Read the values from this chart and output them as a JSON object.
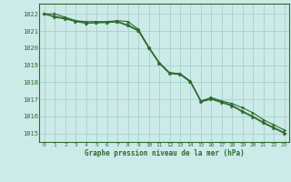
{
  "title": "Graphe pression niveau de la mer (hPa)",
  "bg_color": "#cceae8",
  "grid_color": "#aad4d0",
  "line_color": "#2d6b2d",
  "marker_color": "#2d6b2d",
  "xlim": [
    -0.5,
    23.5
  ],
  "ylim": [
    1014.5,
    1022.6
  ],
  "yticks": [
    1015,
    1016,
    1017,
    1018,
    1019,
    1020,
    1021,
    1022
  ],
  "xticks": [
    0,
    1,
    2,
    3,
    4,
    5,
    6,
    7,
    8,
    9,
    10,
    11,
    12,
    13,
    14,
    15,
    16,
    17,
    18,
    19,
    20,
    21,
    22,
    23
  ],
  "series1": [
    1022.0,
    1022.0,
    1021.8,
    1021.6,
    1021.55,
    1021.55,
    1021.55,
    1021.6,
    1021.55,
    1021.1,
    1020.05,
    1019.15,
    1018.55,
    1018.5,
    1018.05,
    1016.9,
    1017.1,
    1016.9,
    1016.75,
    1016.5,
    1016.2,
    1015.8,
    1015.5,
    1015.2
  ],
  "series2": [
    1022.0,
    1021.85,
    1021.75,
    1021.6,
    1021.45,
    1021.5,
    1021.5,
    1021.55,
    1021.35,
    1021.05,
    1020.05,
    1019.15,
    1018.55,
    1018.5,
    1018.05,
    1016.9,
    1017.05,
    1016.85,
    1016.65,
    1016.3,
    1016.0,
    1015.65,
    1015.35,
    1015.05
  ],
  "series3": [
    1022.0,
    1021.8,
    1021.7,
    1021.55,
    1021.45,
    1021.48,
    1021.5,
    1021.52,
    1021.3,
    1021.0,
    1020.0,
    1019.1,
    1018.5,
    1018.45,
    1018.0,
    1016.85,
    1017.0,
    1016.8,
    1016.6,
    1016.25,
    1015.95,
    1015.6,
    1015.3,
    1015.0
  ]
}
